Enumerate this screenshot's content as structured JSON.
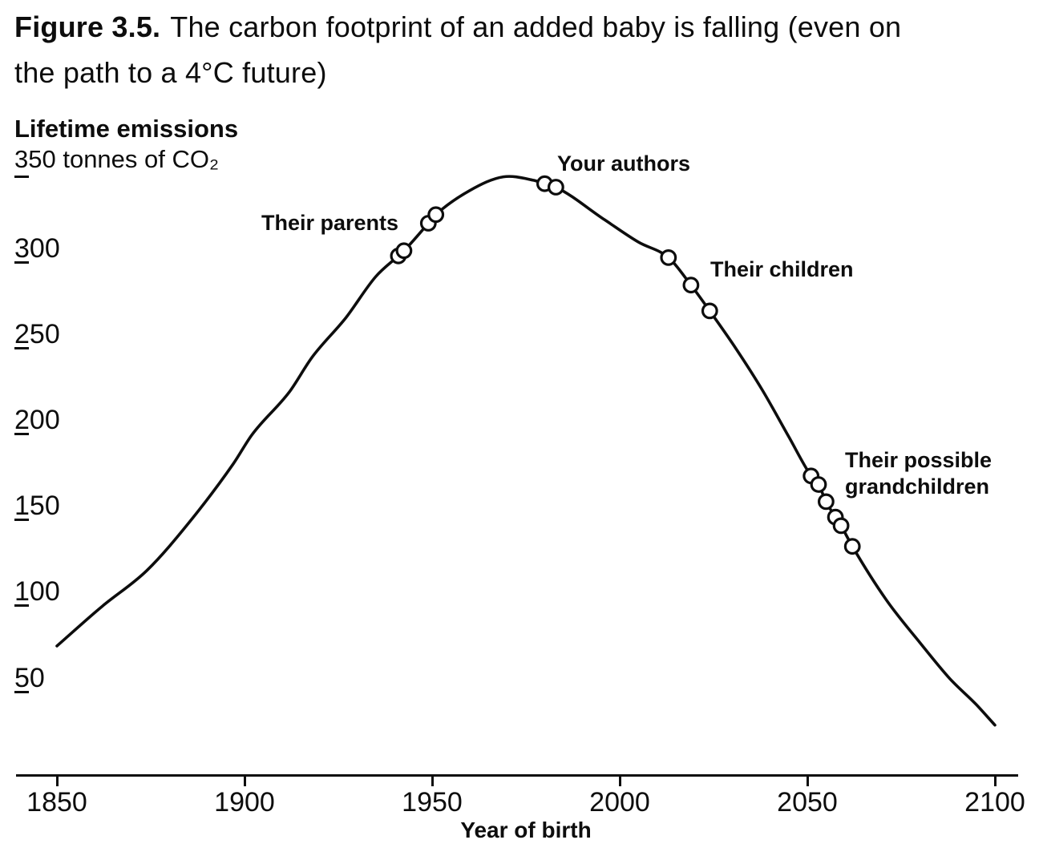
{
  "figure": {
    "label": "Figure 3.5.",
    "title_line1": "The carbon footprint of an added baby is falling (even on",
    "title_line2": "the path to a 4°C future)"
  },
  "chart_data": {
    "type": "line",
    "title": "The carbon footprint of an added baby is falling (even on the path to a 4°C future)",
    "x_label": "Year of birth",
    "y_axis_title": "Lifetime emissions",
    "y_axis_subtitle": "350 tonnes of CO₂",
    "x_domain": [
      1850,
      2100
    ],
    "y_domain": [
      0,
      350
    ],
    "x_ticks": [
      "1850",
      "1900",
      "1950",
      "2000",
      "2050",
      "2100"
    ],
    "y_ticks": [
      "300",
      "250",
      "200",
      "150",
      "100",
      "50"
    ],
    "grid": false,
    "legend": false,
    "line_color": "#0d0d0d",
    "marker_style": "open-circle",
    "curve_points": {
      "year": [
        1850,
        1862,
        1874,
        1886,
        1897,
        1902,
        1912,
        1918,
        1927,
        1935,
        1941,
        1942.5,
        1949,
        1951,
        1960,
        1969,
        1977,
        1980,
        1983,
        1996,
        2005,
        2013,
        2019,
        2024,
        2031,
        2038,
        2045,
        2051,
        2053,
        2055,
        2057.5,
        2059,
        2062,
        2071,
        2080,
        2088,
        2095,
        2100
      ],
      "tonnes": [
        76,
        99,
        120,
        150,
        182,
        199,
        224,
        244,
        267,
        291,
        303,
        306,
        322,
        327,
        341,
        349,
        347,
        345,
        343,
        324,
        311,
        302,
        286,
        271,
        249,
        225,
        198,
        175,
        170,
        160,
        151,
        146,
        134,
        103,
        78,
        57,
        42,
        30
      ]
    },
    "annotations": [
      {
        "id": "parents",
        "label": "Their parents",
        "points": [
          {
            "year": 1941,
            "tonnes": 303
          },
          {
            "year": 1942.5,
            "tonnes": 306
          },
          {
            "year": 1949,
            "tonnes": 322
          },
          {
            "year": 1951,
            "tonnes": 327
          }
        ]
      },
      {
        "id": "authors",
        "label": "Your authors",
        "points": [
          {
            "year": 1980,
            "tonnes": 345
          },
          {
            "year": 1983,
            "tonnes": 343
          }
        ]
      },
      {
        "id": "children",
        "label": "Their children",
        "points": [
          {
            "year": 2013,
            "tonnes": 302
          },
          {
            "year": 2019,
            "tonnes": 286
          },
          {
            "year": 2024,
            "tonnes": 271
          }
        ]
      },
      {
        "id": "grandchildren",
        "label": "Their possible grandchildren",
        "points": [
          {
            "year": 2051,
            "tonnes": 175
          },
          {
            "year": 2053,
            "tonnes": 170
          },
          {
            "year": 2055,
            "tonnes": 160
          },
          {
            "year": 2057.5,
            "tonnes": 151
          },
          {
            "year": 2059,
            "tonnes": 146
          },
          {
            "year": 2062,
            "tonnes": 134
          }
        ]
      }
    ]
  }
}
